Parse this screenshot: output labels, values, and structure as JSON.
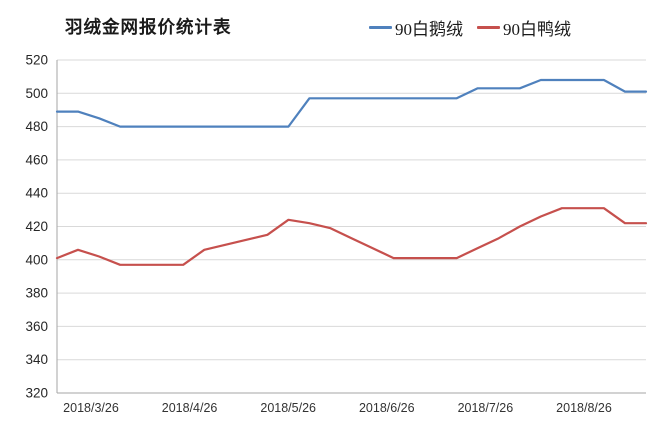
{
  "title": "羽绒金网报价统计表",
  "chart_data": {
    "type": "line",
    "title": "羽绒金网报价统计表",
    "x_tick_labels": [
      "2018/3/26",
      "2018/4/26",
      "2018/5/26",
      "2018/6/26",
      "2018/7/26",
      "2018/8/26"
    ],
    "y_tick_labels": [
      320,
      340,
      360,
      380,
      400,
      420,
      440,
      460,
      480,
      500,
      520
    ],
    "ylim": [
      320,
      520
    ],
    "grid": true,
    "legend_position": "top-right",
    "background": "#ffffff",
    "gridline_color": "#d9d9d9",
    "axis_color": "#a6a6a6",
    "label_color": "#333333",
    "series": [
      {
        "name": "90白鹅绒",
        "color": "#4f81bd",
        "values": [
          489,
          489,
          485,
          480,
          480,
          480,
          480,
          480,
          480,
          480,
          480,
          480,
          497,
          497,
          497,
          497,
          497,
          497,
          497,
          497,
          503,
          503,
          503,
          508,
          508,
          508,
          508,
          501,
          501
        ]
      },
      {
        "name": "90白鸭绒",
        "color": "#c6504d",
        "values": [
          401,
          406,
          402,
          397,
          397,
          397,
          397,
          406,
          409,
          412,
          415,
          424,
          422,
          419,
          413,
          407,
          401,
          401,
          401,
          401,
          407,
          413,
          420,
          426,
          431,
          431,
          431,
          422,
          422
        ]
      }
    ]
  }
}
